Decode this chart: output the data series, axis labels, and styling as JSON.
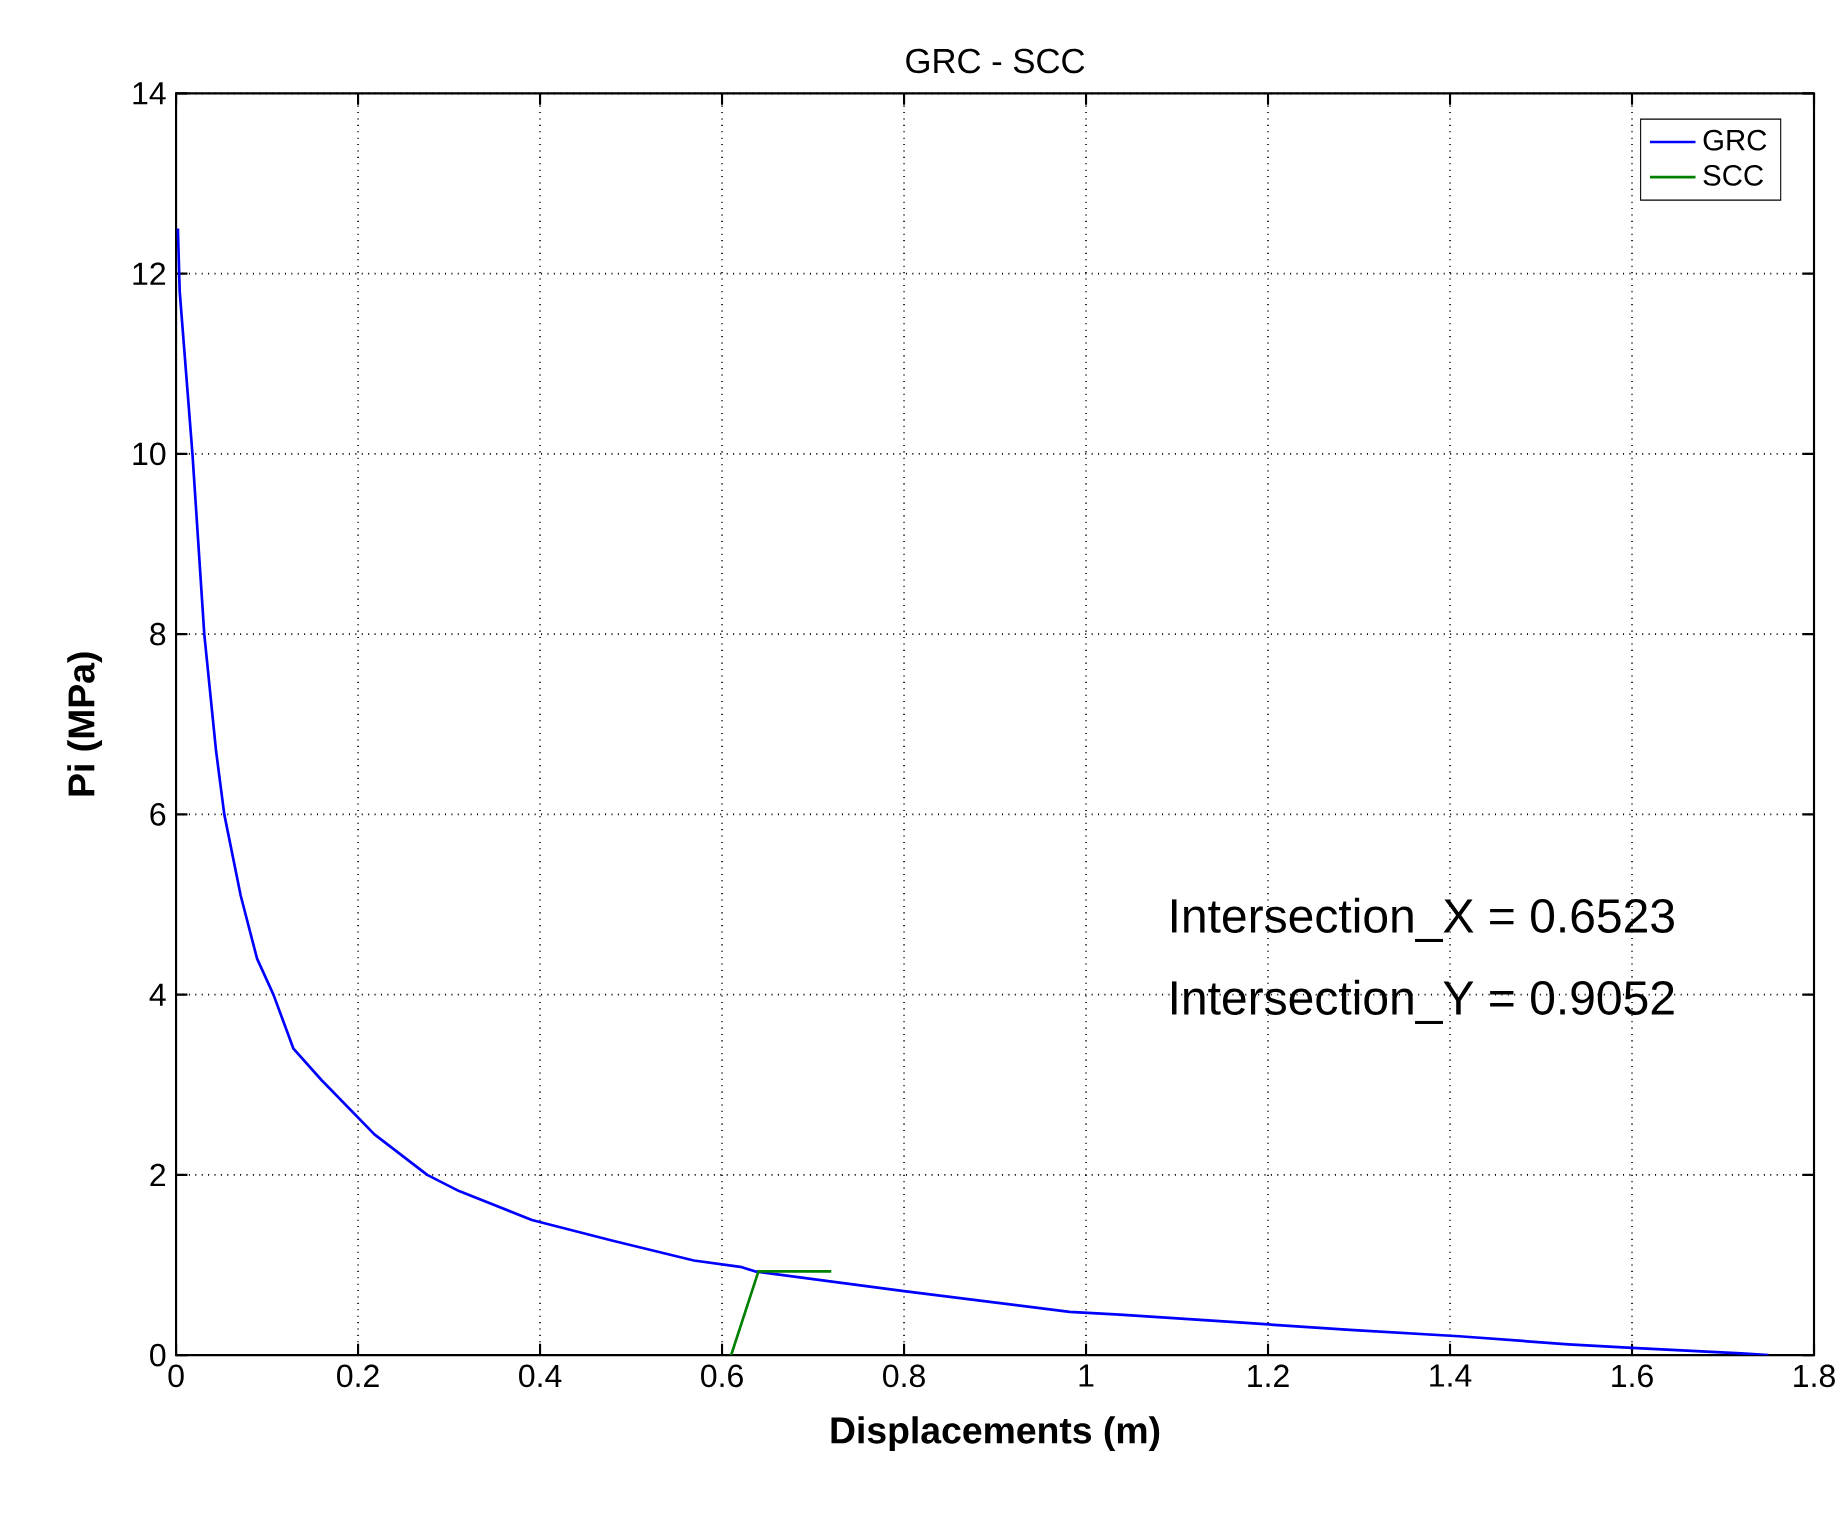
{
  "chart_data": {
    "type": "line",
    "title": "GRC - SCC",
    "xlabel": "Displacements (m)",
    "ylabel": "Pi (MPa)",
    "xlim": [
      0,
      1.8
    ],
    "ylim": [
      0,
      14
    ],
    "xticks": [
      0,
      0.2,
      0.4,
      0.6,
      0.8,
      1,
      1.2,
      1.4,
      1.6,
      1.8
    ],
    "yticks": [
      0,
      2,
      4,
      6,
      8,
      10,
      12,
      14
    ],
    "grid": true,
    "legend": "top right",
    "marker": "none",
    "line_style": "solid",
    "annotations": [
      "Intersection_X =  0.6523",
      "Intersection_Y =  0.9052"
    ],
    "series": [
      {
        "name": "GRC",
        "color": "#0000ff",
        "x": [
          0.002,
          0.004,
          0.018,
          0.031,
          0.044,
          0.053,
          0.071,
          0.089,
          0.107,
          0.129,
          0.16,
          0.218,
          0.276,
          0.311,
          0.391,
          0.48,
          0.569,
          0.62,
          0.636,
          0.8,
          0.982,
          1.037,
          1.172,
          1.29,
          1.41,
          1.53,
          1.6,
          1.72,
          1.75
        ],
        "values": [
          12.5,
          11.8,
          10,
          8,
          6.7,
          6,
          5.1,
          4.4,
          4,
          3.4,
          3.05,
          2.45,
          2,
          1.82,
          1.5,
          1.27,
          1.05,
          0.98,
          0.93,
          0.71,
          0.48,
          0.45,
          0.36,
          0.28,
          0.21,
          0.12,
          0.08,
          0.02,
          0
        ]
      },
      {
        "name": "SCC",
        "color": "#008000",
        "x": [
          0.61,
          0.64,
          0.72
        ],
        "values": [
          0,
          0.93,
          0.93
        ]
      }
    ]
  }
}
